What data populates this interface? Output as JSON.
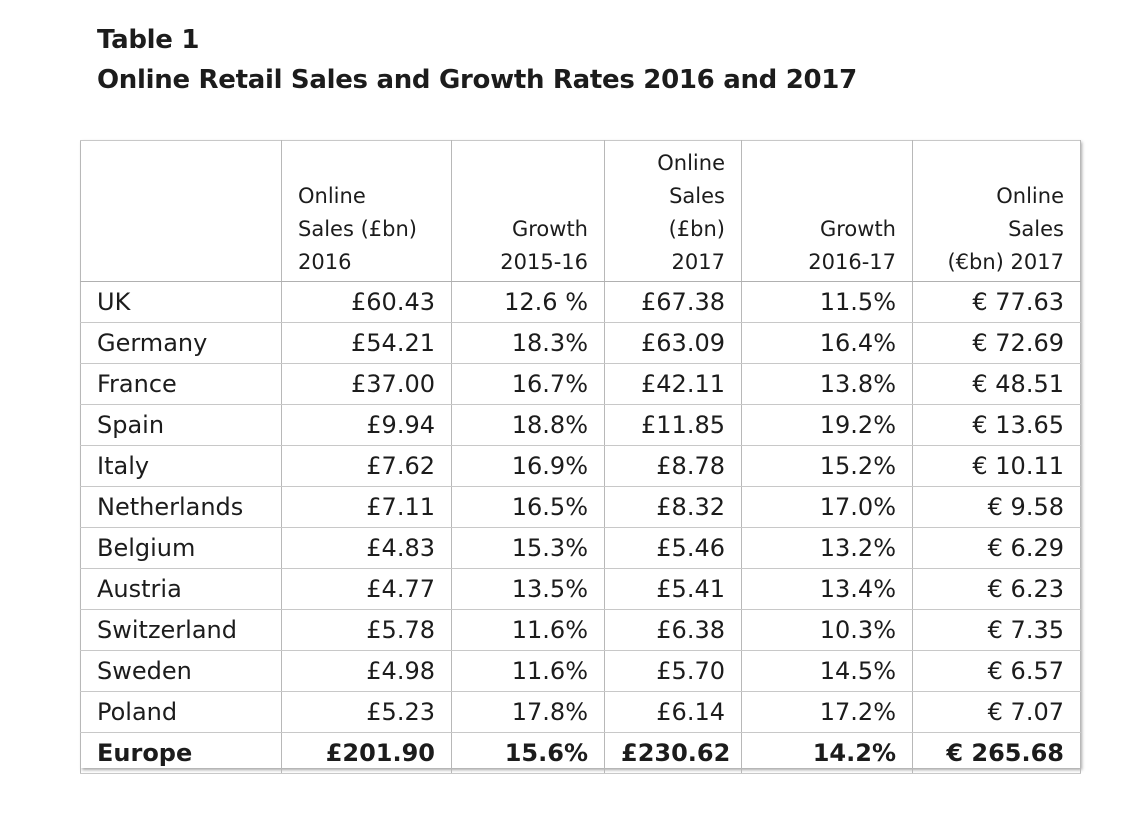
{
  "caption": {
    "label": "Table 1",
    "title": "Online Retail Sales and Growth Rates 2016 and 2017"
  },
  "table": {
    "headers": [
      [
        ""
      ],
      [
        "Online",
        "Sales (£bn)",
        "2016"
      ],
      [
        "Growth",
        "2015-16"
      ],
      [
        "Online",
        "Sales",
        "(£bn)",
        "2017"
      ],
      [
        "Growth",
        "2016-17"
      ],
      [
        "Online",
        "Sales",
        "(€bn) 2017"
      ]
    ],
    "rows": [
      [
        "UK",
        "£60.43",
        "12.6 %",
        "£67.38",
        "11.5%",
        "€ 77.63"
      ],
      [
        "Germany",
        "£54.21",
        "18.3%",
        "£63.09",
        "16.4%",
        "€ 72.69"
      ],
      [
        "France",
        "£37.00",
        "16.7%",
        "£42.11",
        "13.8%",
        "€ 48.51"
      ],
      [
        "Spain",
        "£9.94",
        "18.8%",
        "£11.85",
        "19.2%",
        "€ 13.65"
      ],
      [
        "Italy",
        "£7.62",
        "16.9%",
        "£8.78",
        "15.2%",
        "€ 10.11"
      ],
      [
        "Netherlands",
        "£7.11",
        "16.5%",
        "£8.32",
        "17.0%",
        "€ 9.58"
      ],
      [
        "Belgium",
        "£4.83",
        "15.3%",
        "£5.46",
        "13.2%",
        "€ 6.29"
      ],
      [
        "Austria",
        "£4.77",
        "13.5%",
        "£5.41",
        "13.4%",
        "€ 6.23"
      ],
      [
        "Switzerland",
        "£5.78",
        "11.6%",
        "£6.38",
        "10.3%",
        "€ 7.35"
      ],
      [
        "Sweden",
        "£4.98",
        "11.6%",
        "£5.70",
        "14.5%",
        "€ 6.57"
      ],
      [
        "Poland",
        "£5.23",
        "17.8%",
        "£6.14",
        "17.2%",
        "€ 7.07"
      ]
    ],
    "total": [
      "Europe",
      "£201.90",
      "15.6%",
      "£230.62",
      "14.2%",
      "€ 265.68"
    ]
  }
}
